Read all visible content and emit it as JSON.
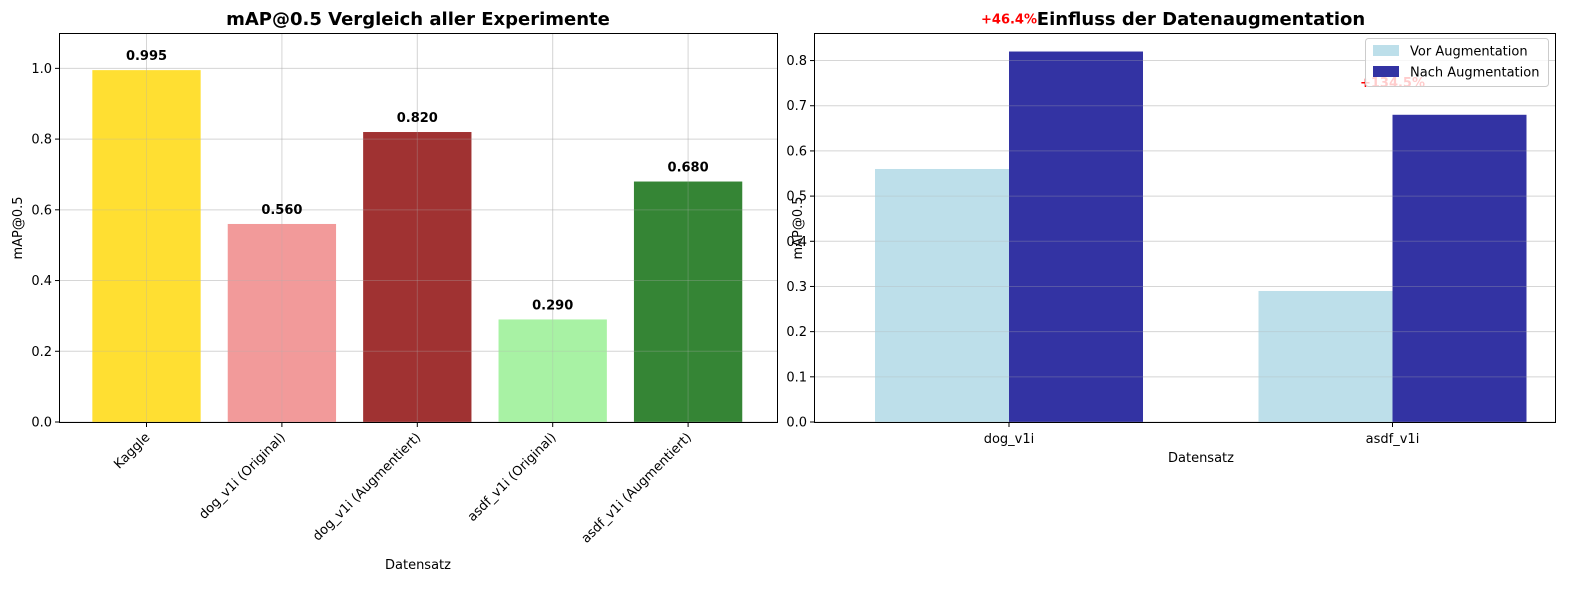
{
  "chart_data": [
    {
      "type": "bar",
      "title": "mAP@0.5 Vergleich aller Experimente",
      "xlabel": "Datensatz",
      "ylabel": "mAP@0.5",
      "categories": [
        "Kaggle",
        "dog_v1i (Original)",
        "dog_v1i (Augmentiert)",
        "asdf_v1i (Original)",
        "asdf_v1i (Augmentiert)"
      ],
      "values": [
        0.995,
        0.56,
        0.82,
        0.29,
        0.68
      ],
      "value_labels": [
        "0.995",
        "0.560",
        "0.820",
        "0.290",
        "0.680"
      ],
      "colors": [
        "#ffdf32",
        "#f29a9a",
        "#a03232",
        "#a8f2a4",
        "#358535"
      ],
      "ylim": [
        0,
        1.1
      ],
      "yticks": [
        0.0,
        0.2,
        0.4,
        0.6,
        0.8,
        1.0
      ],
      "ytick_labels": [
        "0.0",
        "0.2",
        "0.4",
        "0.6",
        "0.8",
        "1.0"
      ],
      "grid": true
    },
    {
      "type": "bar",
      "title": "Einfluss der Datenaugmentation",
      "xlabel": "Datensatz",
      "ylabel": "mAP@0.5",
      "categories": [
        "dog_v1i",
        "asdf_v1i"
      ],
      "series": [
        {
          "name": "Vor Augmentation",
          "values": [
            0.56,
            0.29
          ],
          "color": "#bddfea"
        },
        {
          "name": "Nach Augmentation",
          "values": [
            0.82,
            0.68
          ],
          "color": "#3333a3"
        }
      ],
      "annotations": [
        "+46.4%",
        "+134.5%"
      ],
      "annotation_color": "#ff0000",
      "ylim": [
        0,
        0.861
      ],
      "yticks": [
        0.0,
        0.1,
        0.2,
        0.3,
        0.4,
        0.5,
        0.6,
        0.7,
        0.8
      ],
      "ytick_labels": [
        "0.0",
        "0.1",
        "0.2",
        "0.3",
        "0.4",
        "0.5",
        "0.6",
        "0.7",
        "0.8"
      ],
      "legend_position": "top-right",
      "grid": true
    }
  ]
}
